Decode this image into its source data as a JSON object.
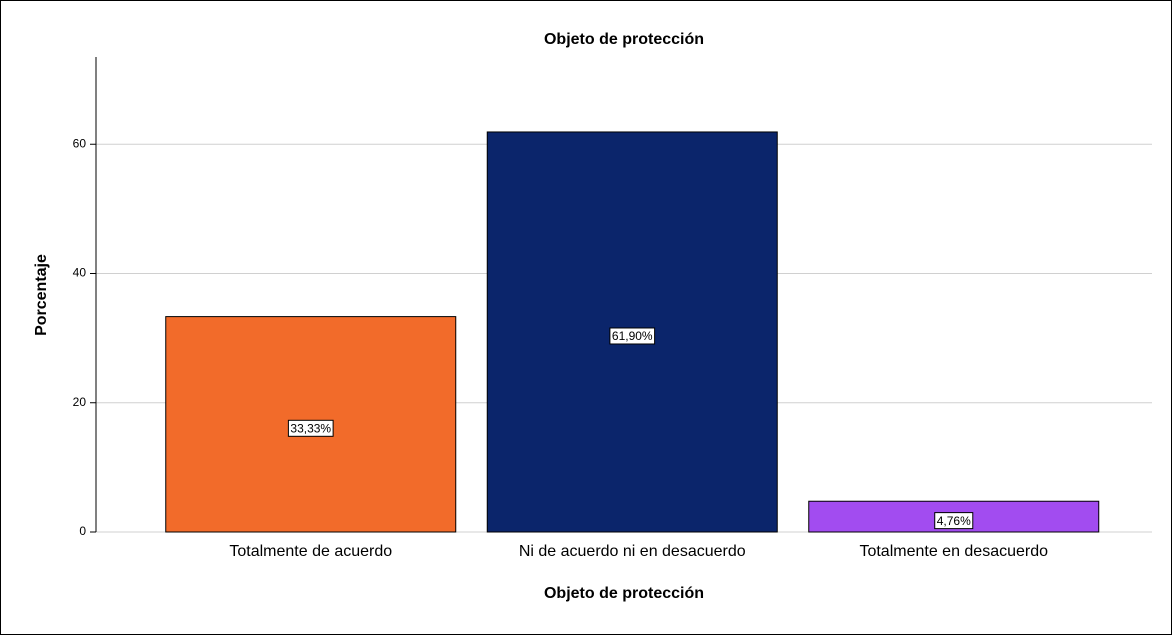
{
  "chart_data": {
    "type": "bar",
    "title": "Objeto de protección",
    "x_label": "Objeto de protección",
    "y_label": "Porcentaje",
    "categories": [
      "Totalmente de acuerdo",
      "Ni de acuerdo ni en desacuerdo",
      "Totalmente en desacuerdo"
    ],
    "values": [
      33.33,
      61.9,
      4.76
    ],
    "value_labels": [
      "33,33%",
      "61,90%",
      "4,76%"
    ],
    "colors": [
      "#f26b2a",
      "#0b256b",
      "#a24cf0"
    ],
    "ylim": [
      0,
      73.5
    ],
    "yticks": [
      0,
      20,
      40,
      60
    ],
    "grid": true
  }
}
